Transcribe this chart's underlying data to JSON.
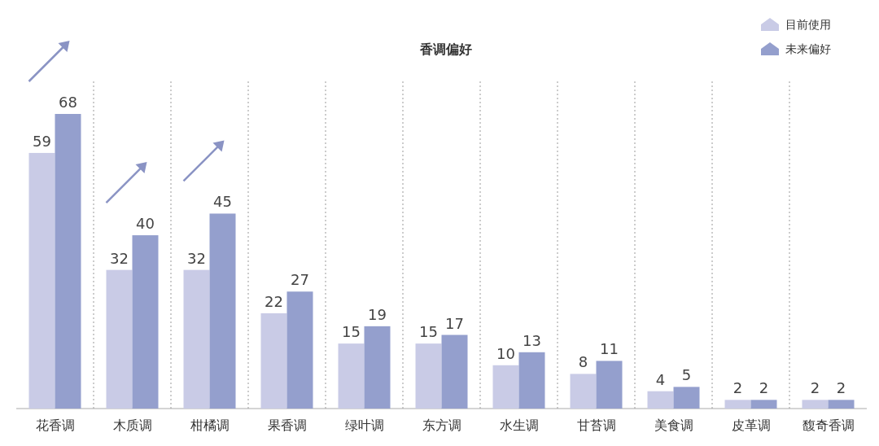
{
  "chart_data": {
    "type": "bar",
    "title": "香调偏好",
    "categories": [
      "花香调",
      "木质调",
      "柑橘调",
      "果香调",
      "绿叶调",
      "东方调",
      "水生调",
      "甘苔调",
      "美食调",
      "皮革调",
      "馥奇香调"
    ],
    "series": [
      {
        "name": "目前使用",
        "color": "#c9cbe6",
        "values": [
          59,
          32,
          32,
          22,
          15,
          15,
          10,
          8,
          4,
          2,
          2
        ]
      },
      {
        "name": "未来偏好",
        "color": "#949fcd",
        "values": [
          68,
          40,
          45,
          27,
          19,
          17,
          13,
          11,
          5,
          2,
          2
        ]
      }
    ],
    "data_labels": true,
    "legend": "top right",
    "grid": "x",
    "tick_labels": "x"
  }
}
